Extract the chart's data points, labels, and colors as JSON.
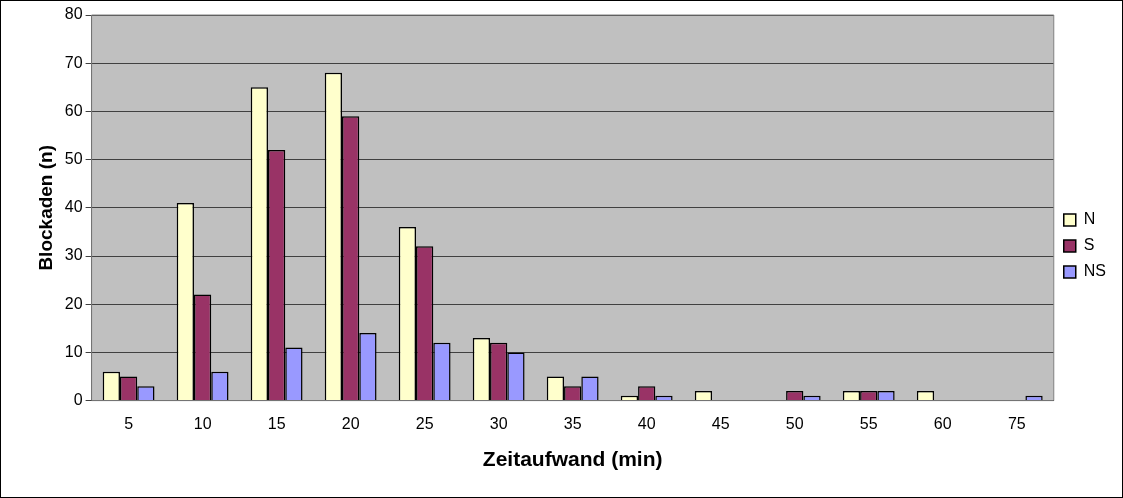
{
  "chart_data": {
    "type": "bar",
    "xlabel": "Zeitaufwand (min)",
    "ylabel": "Blockaden (n)",
    "categories": [
      "5",
      "10",
      "15",
      "20",
      "25",
      "30",
      "35",
      "40",
      "45",
      "50",
      "55",
      "60",
      "75"
    ],
    "series": [
      {
        "name": "N",
        "color": "#ffffcc",
        "values": [
          6,
          41,
          65,
          68,
          36,
          13,
          5,
          1,
          2,
          0,
          2,
          2,
          0
        ]
      },
      {
        "name": "S",
        "color": "#993366",
        "values": [
          5,
          22,
          52,
          59,
          32,
          12,
          3,
          3,
          0,
          2,
          2,
          0,
          0
        ]
      },
      {
        "name": "NS",
        "color": "#9999ff",
        "values": [
          3,
          6,
          11,
          14,
          12,
          10,
          5,
          1,
          0,
          1,
          2,
          0,
          1
        ]
      }
    ],
    "ylim": [
      0,
      80
    ],
    "yticks": [
      0,
      10,
      20,
      30,
      40,
      50,
      60,
      70,
      80
    ],
    "grid": "y",
    "legend": "right"
  }
}
